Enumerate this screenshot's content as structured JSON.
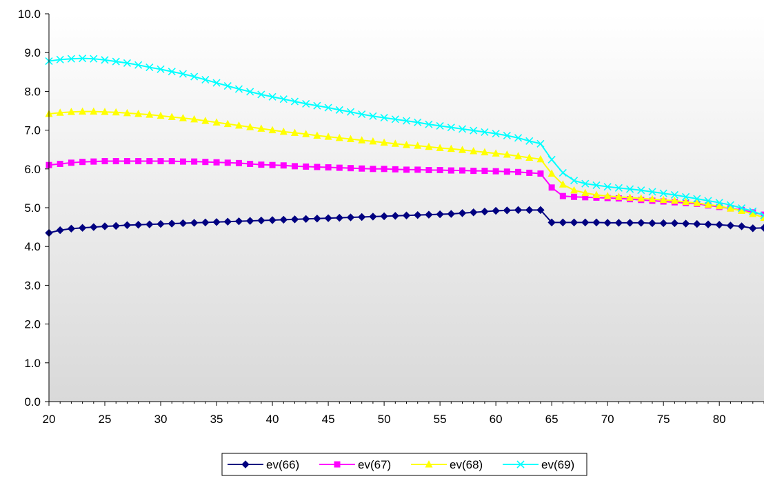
{
  "chart_data": {
    "type": "line",
    "title": "",
    "xlabel": "",
    "ylabel": "",
    "xlim": [
      20,
      84
    ],
    "ylim": [
      0,
      10
    ],
    "x_ticks": [
      20,
      25,
      30,
      35,
      40,
      45,
      50,
      55,
      60,
      65,
      70,
      75,
      80
    ],
    "x_tick_labels": [
      "20",
      "25",
      "30",
      "35",
      "40",
      "45",
      "50",
      "55",
      "60",
      "65",
      "70",
      "75",
      "80"
    ],
    "y_ticks": [
      0,
      1,
      2,
      3,
      4,
      5,
      6,
      7,
      8,
      9,
      10
    ],
    "y_tick_labels": [
      "0.0",
      "1.0",
      "2.0",
      "3.0",
      "4.0",
      "5.0",
      "6.0",
      "7.0",
      "8.0",
      "9.0",
      "10.0"
    ],
    "grid": false,
    "legend_position": "bottom",
    "background": "gradient-white-to-gray",
    "x": [
      20,
      21,
      22,
      23,
      24,
      25,
      26,
      27,
      28,
      29,
      30,
      31,
      32,
      33,
      34,
      35,
      36,
      37,
      38,
      39,
      40,
      41,
      42,
      43,
      44,
      45,
      46,
      47,
      48,
      49,
      50,
      51,
      52,
      53,
      54,
      55,
      56,
      57,
      58,
      59,
      60,
      61,
      62,
      63,
      64,
      65,
      66,
      67,
      68,
      69,
      70,
      71,
      72,
      73,
      74,
      75,
      76,
      77,
      78,
      79,
      80,
      81,
      82,
      83,
      84
    ],
    "series": [
      {
        "name": "ev(66)",
        "color": "#000080",
        "marker": "diamond",
        "values": [
          4.35,
          4.42,
          4.46,
          4.48,
          4.5,
          4.52,
          4.53,
          4.55,
          4.56,
          4.57,
          4.58,
          4.59,
          4.6,
          4.61,
          4.62,
          4.63,
          4.64,
          4.65,
          4.66,
          4.67,
          4.68,
          4.69,
          4.7,
          4.71,
          4.72,
          4.73,
          4.74,
          4.75,
          4.76,
          4.77,
          4.78,
          4.79,
          4.8,
          4.81,
          4.82,
          4.83,
          4.84,
          4.86,
          4.88,
          4.9,
          4.92,
          4.93,
          4.94,
          4.94,
          4.94,
          4.62,
          4.62,
          4.62,
          4.62,
          4.62,
          4.61,
          4.61,
          4.61,
          4.61,
          4.6,
          4.6,
          4.6,
          4.59,
          4.58,
          4.57,
          4.56,
          4.54,
          4.52,
          4.47,
          4.48
        ]
      },
      {
        "name": "ev(67)",
        "color": "#FF00FF",
        "marker": "square",
        "values": [
          6.1,
          6.13,
          6.16,
          6.18,
          6.19,
          6.2,
          6.2,
          6.2,
          6.2,
          6.2,
          6.2,
          6.2,
          6.19,
          6.19,
          6.18,
          6.17,
          6.16,
          6.15,
          6.13,
          6.11,
          6.1,
          6.09,
          6.07,
          6.06,
          6.05,
          6.04,
          6.03,
          6.02,
          6.01,
          6.0,
          6.0,
          5.99,
          5.98,
          5.98,
          5.97,
          5.97,
          5.96,
          5.96,
          5.95,
          5.95,
          5.94,
          5.93,
          5.92,
          5.9,
          5.88,
          5.52,
          5.3,
          5.28,
          5.27,
          5.26,
          5.25,
          5.24,
          5.22,
          5.2,
          5.18,
          5.16,
          5.14,
          5.12,
          5.1,
          5.06,
          5.02,
          4.98,
          4.94,
          4.88,
          4.82
        ]
      },
      {
        "name": "ev(68)",
        "color": "#FFFF00",
        "marker": "triangle",
        "values": [
          7.42,
          7.45,
          7.47,
          7.48,
          7.48,
          7.47,
          7.46,
          7.44,
          7.42,
          7.4,
          7.37,
          7.34,
          7.31,
          7.28,
          7.24,
          7.2,
          7.16,
          7.12,
          7.08,
          7.04,
          7.0,
          6.96,
          6.93,
          6.9,
          6.86,
          6.83,
          6.8,
          6.77,
          6.74,
          6.71,
          6.68,
          6.65,
          6.62,
          6.6,
          6.57,
          6.54,
          6.52,
          6.49,
          6.46,
          6.43,
          6.4,
          6.37,
          6.33,
          6.29,
          6.25,
          5.88,
          5.6,
          5.45,
          5.38,
          5.33,
          5.3,
          5.28,
          5.26,
          5.24,
          5.22,
          5.2,
          5.18,
          5.15,
          5.12,
          5.08,
          5.04,
          4.98,
          4.92,
          4.84,
          4.74
        ]
      },
      {
        "name": "ev(69)",
        "color": "#00FFFF",
        "marker": "x",
        "values": [
          8.78,
          8.82,
          8.84,
          8.85,
          8.84,
          8.81,
          8.77,
          8.73,
          8.68,
          8.62,
          8.57,
          8.51,
          8.45,
          8.38,
          8.3,
          8.22,
          8.14,
          8.06,
          7.99,
          7.92,
          7.86,
          7.8,
          7.74,
          7.68,
          7.63,
          7.58,
          7.52,
          7.47,
          7.41,
          7.36,
          7.32,
          7.28,
          7.24,
          7.2,
          7.15,
          7.11,
          7.07,
          7.03,
          6.99,
          6.95,
          6.91,
          6.86,
          6.8,
          6.72,
          6.65,
          6.24,
          5.9,
          5.7,
          5.62,
          5.58,
          5.54,
          5.51,
          5.48,
          5.45,
          5.41,
          5.37,
          5.33,
          5.28,
          5.23,
          5.18,
          5.13,
          5.07,
          4.99,
          4.91,
          4.8
        ]
      }
    ]
  }
}
